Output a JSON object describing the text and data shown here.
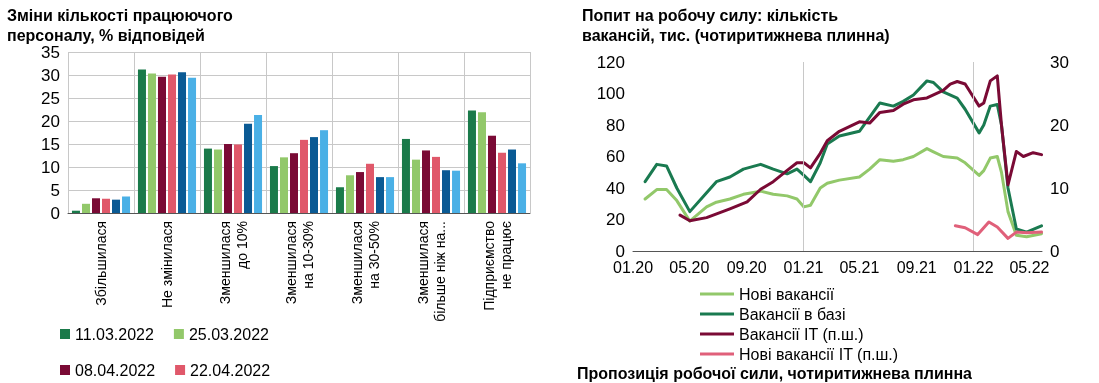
{
  "chart_data": [
    {
      "type": "bar",
      "title": "Зміни кількості працюючого персоналу, % відповідей",
      "categories": [
        "Збільшилася",
        "Не змінилася",
        "Зменшилася\nдо 10%",
        "Зменшилася\nна 10-30%",
        "Зменшилася\nна 30-50%",
        "Зменшилася\nбільше ніж на...",
        "Підприємство\nне працює"
      ],
      "series": [
        {
          "name": "11.03.2022",
          "color": "#1a7a4a",
          "values": [
            0.5,
            31.2,
            14,
            10.2,
            5.6,
            16.1,
            22.3
          ]
        },
        {
          "name": "25.03.2022",
          "color": "#92c86a",
          "values": [
            2,
            30.3,
            13.8,
            12.1,
            8.2,
            11.6,
            21.9
          ]
        },
        {
          "name": "08.04.2022",
          "color": "#7a0a35",
          "values": [
            3.2,
            29.6,
            15,
            13,
            8.9,
            13.6,
            16.8
          ]
        },
        {
          "name": "22.04.2022",
          "color": "#e0586a",
          "values": [
            3.1,
            30.1,
            14.9,
            15.9,
            10.7,
            12.2,
            13.1
          ]
        },
        {
          "color": "#0a5a94",
          "values": [
            2.9,
            30.6,
            19.4,
            16.5,
            7.8,
            9.3,
            13.8
          ]
        },
        {
          "color": "#4ab0e6",
          "values": [
            3.6,
            29.4,
            21.3,
            18,
            7.8,
            9.2,
            10.8
          ]
        }
      ],
      "ylim": [
        0,
        35
      ],
      "yticks": [
        0,
        5,
        10,
        15,
        20,
        25,
        30,
        35
      ],
      "grid": true,
      "legend": "bottom"
    },
    {
      "type": "line",
      "title": "Попит на робочу силу: кількість вакансій, тис. (чотиритижнева плинна)",
      "series": [
        {
          "name": "Нові вакансії",
          "color": "#92c86a",
          "x": [
            "2020-01-27",
            "2020-02-21",
            "2020-03-13",
            "2020-04-04",
            "2020-05-02",
            "2020-06-07",
            "2020-06-28",
            "2020-07-27",
            "2020-08-25",
            "2020-10-01",
            "2020-10-28",
            "2020-11-27",
            "2020-12-18",
            "2021-01-02",
            "2021-01-16",
            "2021-02-06",
            "2021-02-21",
            "2021-03-19",
            "2021-05-01",
            "2021-05-23",
            "2021-06-14",
            "2021-07-13",
            "2021-08-03",
            "2021-08-25",
            "2021-09-23",
            "2021-10-07",
            "2021-10-28",
            "2021-11-27",
            "2021-12-14",
            "2022-01-13",
            "2022-01-23",
            "2022-02-06",
            "2022-02-21",
            "2022-03-02",
            "2022-03-16",
            "2022-04-03",
            "2022-04-25",
            "2022-05-27"
          ],
          "values": [
            33,
            39,
            39,
            32,
            19,
            28,
            31,
            33,
            36,
            38,
            36,
            35,
            33,
            28,
            29,
            40,
            43,
            45,
            47,
            52,
            58,
            57,
            58,
            60,
            65,
            63,
            60,
            59,
            56,
            48,
            51,
            59,
            60,
            50,
            25,
            10,
            9,
            11
          ]
        },
        {
          "name": "Вакансії в базі",
          "color": "#1a7a50",
          "x": [
            "2020-01-27",
            "2020-02-21",
            "2020-03-13",
            "2020-04-04",
            "2020-05-02",
            "2020-06-07",
            "2020-06-28",
            "2020-07-27",
            "2020-08-25",
            "2020-10-01",
            "2020-10-28",
            "2020-11-27",
            "2020-12-18",
            "2021-01-02",
            "2021-01-16",
            "2021-02-06",
            "2021-02-21",
            "2021-03-19",
            "2021-05-01",
            "2021-05-23",
            "2021-06-14",
            "2021-07-13",
            "2021-08-03",
            "2021-08-25",
            "2021-09-23",
            "2021-10-07",
            "2021-10-28",
            "2021-11-27",
            "2021-12-14",
            "2022-01-13",
            "2022-01-23",
            "2022-02-06",
            "2022-02-21",
            "2022-03-02",
            "2022-03-16",
            "2022-04-03",
            "2022-04-25",
            "2022-05-27"
          ],
          "values": [
            44,
            55,
            54,
            40,
            25,
            37,
            44,
            47,
            52,
            55,
            52,
            49,
            52,
            48,
            44,
            56,
            68,
            73,
            76,
            85,
            94,
            92,
            95,
            99,
            108,
            107,
            101,
            97,
            90,
            75,
            80,
            92,
            93,
            80,
            40,
            14,
            12,
            16
          ]
        },
        {
          "name": "Вакансії IT (п.ш.)",
          "color": "#7a0a35",
          "axis": "y2",
          "x": [
            "2020-04-11",
            "2020-05-02",
            "2020-06-07",
            "2020-07-27",
            "2020-09-02",
            "2020-10-01",
            "2020-10-28",
            "2020-11-27",
            "2020-12-18",
            "2021-01-02",
            "2021-01-16",
            "2021-02-06",
            "2021-02-21",
            "2021-03-19",
            "2021-05-01",
            "2021-05-23",
            "2021-06-14",
            "2021-07-13",
            "2021-08-03",
            "2021-08-25",
            "2021-09-23",
            "2021-10-28",
            "2021-11-12",
            "2021-11-27",
            "2021-12-14",
            "2022-01-13",
            "2022-01-23",
            "2022-02-06",
            "2022-02-21",
            "2022-03-02",
            "2022-03-16",
            "2022-04-03",
            "2022-04-18",
            "2022-05-09",
            "2022-05-27"
          ],
          "values": [
            5.7,
            4.8,
            5.3,
            6.7,
            7.8,
            9.8,
            11,
            12.8,
            14,
            14,
            13.2,
            15.5,
            17.5,
            19,
            20.5,
            20.3,
            22,
            22.3,
            23.3,
            24,
            24.3,
            25.5,
            26.5,
            26.9,
            26.5,
            23,
            23.5,
            27,
            27.8,
            20,
            10.5,
            15.8,
            15,
            15.6,
            15.3
          ]
        },
        {
          "name": "Нові вакансії IT (п.ш.)",
          "color": "#e0607a",
          "axis": "y2",
          "x": [
            "2021-11-23",
            "2021-12-14",
            "2022-01-10",
            "2022-02-03",
            "2022-02-21",
            "2022-03-16",
            "2022-04-03",
            "2022-04-25",
            "2022-05-27"
          ],
          "values": [
            4.0,
            3.7,
            2.6,
            4.6,
            3.8,
            2.0,
            3.0,
            2.9,
            3.0
          ]
        }
      ],
      "xlim": [
        "2020-01-01",
        "2022-05-28"
      ],
      "xticks": [
        {
          "value": "2020-01-01",
          "label": "01.20"
        },
        {
          "value": "2020-05-01",
          "label": "05.20"
        },
        {
          "value": "2020-09-01",
          "label": "09.20"
        },
        {
          "value": "2021-01-01",
          "label": "01.21"
        },
        {
          "value": "2021-05-01",
          "label": "05.21"
        },
        {
          "value": "2021-09-01",
          "label": "09.21"
        },
        {
          "value": "2022-01-01",
          "label": "01.22"
        },
        {
          "value": "2022-05-01",
          "label": "05.22"
        }
      ],
      "ylim": [
        0,
        120
      ],
      "yticks": [
        0,
        20,
        40,
        60,
        80,
        100,
        120
      ],
      "y2lim": [
        0,
        30
      ],
      "y2ticks": [
        0,
        10,
        20,
        30
      ],
      "ref_lines": [
        {
          "axis": "x",
          "value": "2021-01-01",
          "color": "#c8c8c8"
        },
        {
          "axis": "x",
          "value": "2022-01-01",
          "color": "#c8c8c8"
        }
      ],
      "marker": "none",
      "legend": "bottom",
      "annotations": [
        "Пропозиція робочої сили, чотиритижнева плинна"
      ]
    }
  ]
}
